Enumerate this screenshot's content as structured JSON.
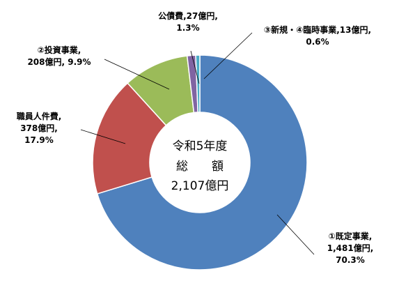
{
  "chart_data": {
    "type": "pie",
    "donut": true,
    "title": "",
    "center_text": [
      "令和5年度",
      "総　　額",
      "2,107億円"
    ],
    "unit": "億円",
    "slices": [
      {
        "name": "①既定事業",
        "value": 1481,
        "percent": 70.3,
        "color": "#4F81BD",
        "label_lines": [
          "①既定事業,",
          "1,481億円,",
          "70.3%"
        ]
      },
      {
        "name": "職員人件費",
        "value": 378,
        "percent": 17.9,
        "color": "#C0504D",
        "label_lines": [
          "職員人件費,",
          "378億円,",
          "17.9%"
        ]
      },
      {
        "name": "②投資事業",
        "value": 208,
        "percent": 9.9,
        "color": "#9BBB59",
        "label_lines": [
          "②投資事業,",
          "208億円, 9.9%"
        ]
      },
      {
        "name": "公債費",
        "value": 27,
        "percent": 1.3,
        "color": "#8064A2",
        "label_lines": [
          "公債費,27億円,",
          "1.3%"
        ]
      },
      {
        "name": "③新規・④臨時事業",
        "value": 13,
        "percent": 0.6,
        "color": "#4BACC6",
        "label_lines": [
          "③新規・④臨時事業,13億円,",
          "0.6%"
        ]
      }
    ]
  }
}
